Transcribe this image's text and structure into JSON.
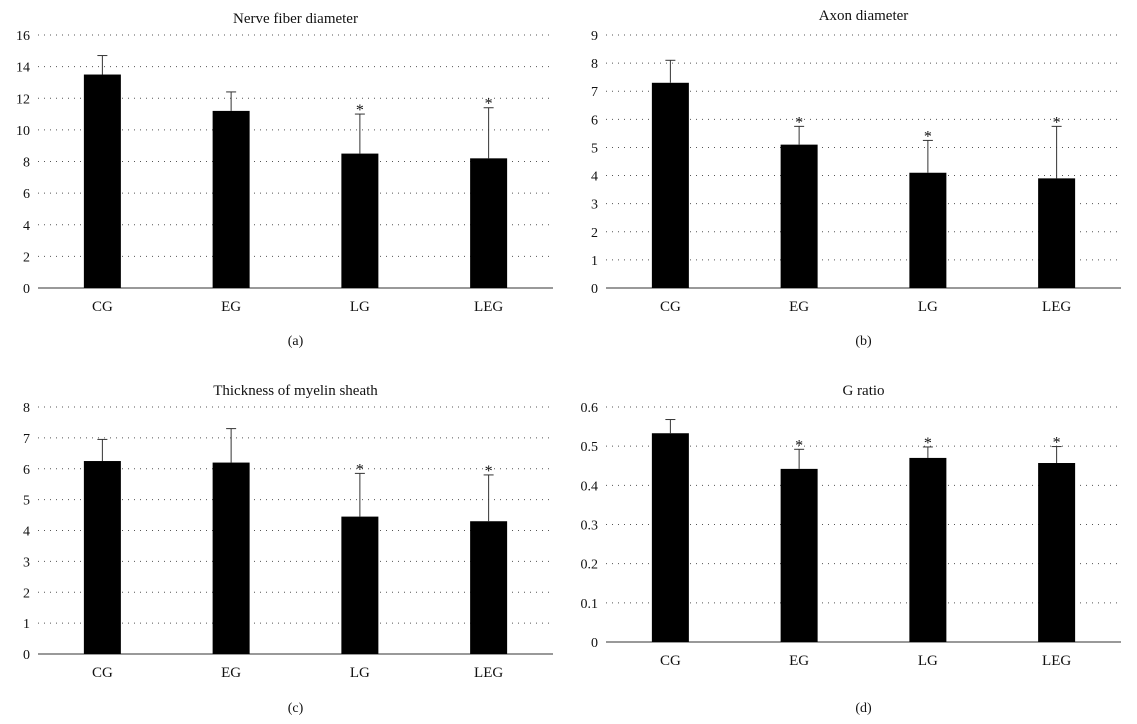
{
  "colors": {
    "bar": "#000000",
    "axis": "#333333",
    "grid": "#555555"
  },
  "chart_data": [
    {
      "type": "bar",
      "title": "Nerve fiber diameter",
      "panel_label": "(a)",
      "categories": [
        "CG",
        "EG",
        "LG",
        "LEG"
      ],
      "values": [
        13.5,
        11.2,
        8.5,
        8.2
      ],
      "error": [
        1.2,
        1.2,
        2.5,
        3.2
      ],
      "significance": [
        "",
        "",
        "*",
        "*"
      ],
      "ylim": [
        0,
        16
      ],
      "yticks": [
        0,
        2,
        4,
        6,
        8,
        10,
        12,
        14,
        16
      ],
      "ytick_labels": [
        "0",
        "2",
        "4",
        "6",
        "8",
        "10",
        "12",
        "14",
        "16"
      ],
      "xlabel": "",
      "ylabel": "",
      "grid": true
    },
    {
      "type": "bar",
      "title": "Axon diameter",
      "panel_label": "(b)",
      "categories": [
        "CG",
        "EG",
        "LG",
        "LEG"
      ],
      "values": [
        7.3,
        5.1,
        4.1,
        3.9
      ],
      "error": [
        0.8,
        0.65,
        1.15,
        1.85
      ],
      "significance": [
        "",
        "*",
        "*",
        "*"
      ],
      "ylim": [
        0,
        9
      ],
      "yticks": [
        0,
        1,
        2,
        3,
        4,
        5,
        6,
        7,
        8,
        9
      ],
      "ytick_labels": [
        "0",
        "1",
        "2",
        "3",
        "4",
        "5",
        "6",
        "7",
        "8",
        "9"
      ],
      "xlabel": "",
      "ylabel": "",
      "grid": true
    },
    {
      "type": "bar",
      "title": "Thickness of myelin sheath",
      "panel_label": "(c)",
      "categories": [
        "CG",
        "EG",
        "LG",
        "LEG"
      ],
      "values": [
        6.25,
        6.2,
        4.45,
        4.3
      ],
      "error": [
        0.7,
        1.1,
        1.4,
        1.5
      ],
      "significance": [
        "",
        "",
        "*",
        "*"
      ],
      "ylim": [
        0,
        8
      ],
      "yticks": [
        0,
        1,
        2,
        3,
        4,
        5,
        6,
        7,
        8
      ],
      "ytick_labels": [
        "0",
        "1",
        "2",
        "3",
        "4",
        "5",
        "6",
        "7",
        "8"
      ],
      "xlabel": "",
      "ylabel": "",
      "grid": true
    },
    {
      "type": "bar",
      "title": "G ratio",
      "panel_label": "(d)",
      "categories": [
        "CG",
        "EG",
        "LG",
        "LEG"
      ],
      "values": [
        0.533,
        0.442,
        0.47,
        0.457
      ],
      "error": [
        0.035,
        0.05,
        0.028,
        0.042
      ],
      "significance": [
        "",
        "*",
        "*",
        "*"
      ],
      "ylim": [
        0,
        0.6
      ],
      "yticks": [
        0,
        0.1,
        0.2,
        0.3,
        0.4,
        0.5,
        0.6
      ],
      "ytick_labels": [
        "0",
        "0.1",
        "0.2",
        "0.3",
        "0.4",
        "0.5",
        "0.6"
      ],
      "xlabel": "",
      "ylabel": "",
      "grid": true
    }
  ]
}
